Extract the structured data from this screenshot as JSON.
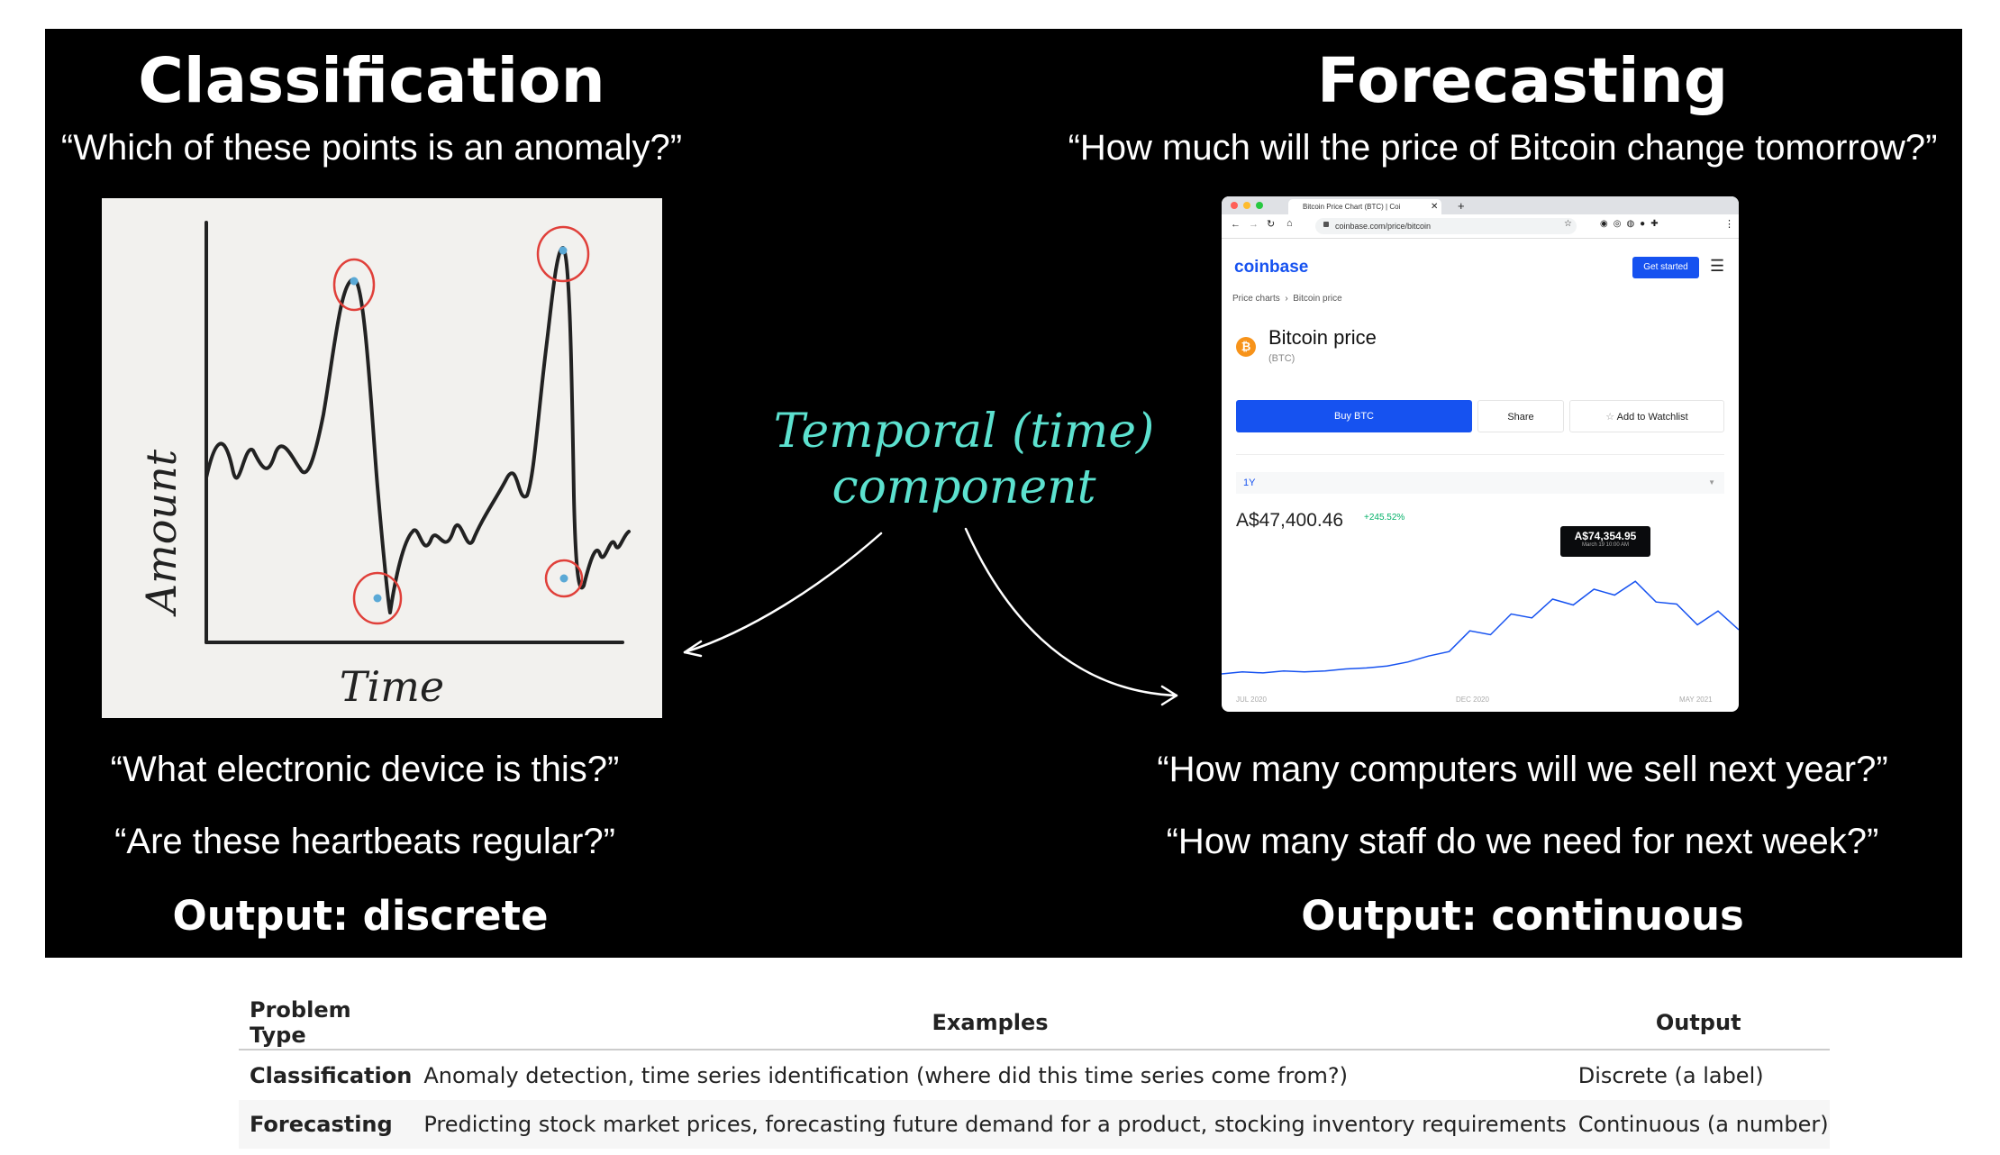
{
  "slide": {
    "left_title": "Classification",
    "left_question": "“Which of these points is an anomaly?”",
    "right_title": "Forecasting",
    "right_question": "“How much will the price of Bitcoin change tomorrow?”",
    "temporal_line1": "Temporal (time)",
    "temporal_line2": "component",
    "left_examples": [
      "“What electronic device is this?”",
      "“Are these heartbeats regular?”"
    ],
    "right_examples": [
      "“How many computers will we sell next year?”",
      "“How many staff do we need for next week?”"
    ],
    "left_output": "Output: discrete",
    "right_output": "Output: continuous"
  },
  "sketch": {
    "ylabel": "Amount",
    "xlabel": "Time",
    "line_color": "#222222",
    "circle_color": "#e0403a",
    "point_color": "#5aa9d6"
  },
  "browser": {
    "tab_title": "Bitcoin Price Chart (BTC) | Coi",
    "url": "coinbase.com/price/bitcoin",
    "logo": "coinbase",
    "get_started": "Get started",
    "breadcrumb": "Price charts  ›  Bitcoin price",
    "coin_title": "Bitcoin price",
    "coin_ticker": "(BTC)",
    "buy_label": "Buy BTC",
    "share_label": "Share",
    "watchlist_label": "Add to Watchlist",
    "range_label": "1Y",
    "price": "A$47,400.46",
    "change": "+245.52%",
    "tooltip_price": "A$74,354.95",
    "tooltip_date": "March 19 10:00 AM",
    "x_ticks": [
      "JUL 2020",
      "DEC 2020",
      "MAY 2021"
    ],
    "accent": "#1652f0",
    "up_color": "#05b169"
  },
  "table": {
    "headers": [
      "Problem Type",
      "Examples",
      "Output"
    ],
    "rows": [
      [
        "Classification",
        "Anomaly detection, time series identification (where did this time series come from?)",
        "Discrete (a label)"
      ],
      [
        "Forecasting",
        "Predicting stock market prices, forecasting future demand for a product, stocking inventory requirements",
        "Continuous (a number)"
      ]
    ]
  }
}
